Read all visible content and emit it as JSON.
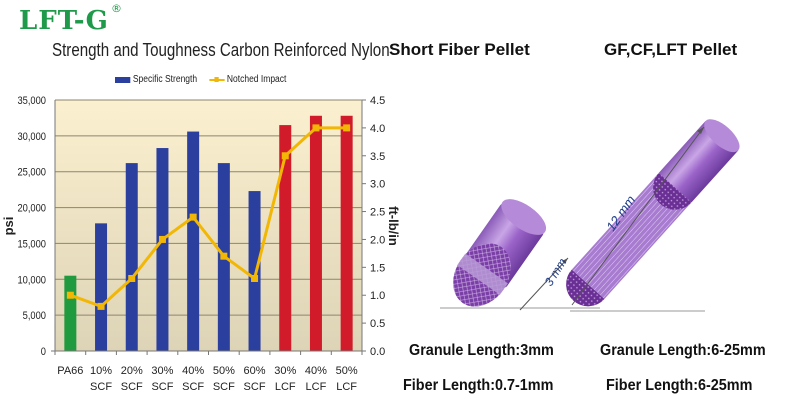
{
  "brand": {
    "logo": "LFT-G",
    "registered": "®"
  },
  "chart_data": {
    "type": "bar",
    "title": "Strength and Toughness Carbon Reinforced Nylon",
    "categories": [
      "PA66",
      "10% SCF",
      "20% SCF",
      "30% SCF",
      "40% SCF",
      "50% SCF",
      "60% SCF",
      "30% LCF",
      "40% LCF",
      "50% LCF"
    ],
    "category_lines": [
      [
        "PA66",
        ""
      ],
      [
        "10%",
        "SCF"
      ],
      [
        "20%",
        "SCF"
      ],
      [
        "30%",
        "SCF"
      ],
      [
        "40%",
        "SCF"
      ],
      [
        "50%",
        "SCF"
      ],
      [
        "60%",
        "SCF"
      ],
      [
        "30%",
        "LCF"
      ],
      [
        "40%",
        "LCF"
      ],
      [
        "50%",
        "LCF"
      ]
    ],
    "series": [
      {
        "name": "Specific Strength",
        "type": "bar",
        "axis": "left",
        "values": [
          10500,
          17800,
          26200,
          28300,
          30600,
          26200,
          22300,
          31500,
          32800,
          32800
        ],
        "colors": [
          "#1f9a3e",
          "#2b3f9e",
          "#2b3f9e",
          "#2b3f9e",
          "#2b3f9e",
          "#2b3f9e",
          "#2b3f9e",
          "#d11a2a",
          "#d11a2a",
          "#d11a2a"
        ]
      },
      {
        "name": "Notched Impact",
        "type": "line",
        "axis": "right",
        "color": "#f2b705",
        "values": [
          1.0,
          0.8,
          1.3,
          2.0,
          2.4,
          1.7,
          1.3,
          3.5,
          4.0,
          4.0
        ]
      }
    ],
    "ylabel": "psi",
    "ylabel_right": "ft-lb/in",
    "ylim": [
      0,
      35000
    ],
    "ylim_right": [
      0,
      4.5
    ],
    "yticks": [
      "0",
      "5,000",
      "10,000",
      "15,000",
      "20,000",
      "25,000",
      "30,000",
      "35,000"
    ],
    "yticks_right": [
      "0.0",
      "0.5",
      "1.0",
      "1.5",
      "2.0",
      "2.5",
      "3.0",
      "3.5",
      "4.0",
      "4.5"
    ],
    "legend": [
      "Specific Strength",
      "Notched Impact"
    ],
    "legend_position": "top",
    "grid": true
  },
  "pellets": {
    "short": {
      "title": "Short Fiber Pellet",
      "dimension": "3 mm",
      "granule_length": "Granule Length:3mm",
      "fiber_length": "Fiber Length:0.7-1mm"
    },
    "long": {
      "title": "GF,CF,LFT Pellet",
      "dimension": "12 mm",
      "granule_length": "Granule Length:6-25mm",
      "fiber_length": "Fiber Length:6-25mm"
    }
  }
}
